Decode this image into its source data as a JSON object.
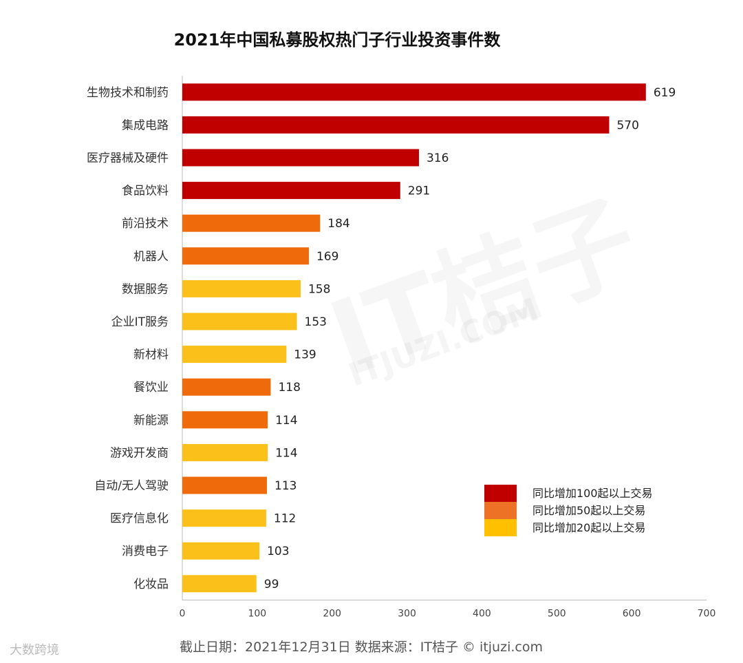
{
  "chart_data": {
    "type": "bar",
    "orientation": "horizontal",
    "title": "2021年中国私募股权热门子行业投资事件数",
    "categories": [
      "生物技术和制药",
      "集成电路",
      "医疗器械及硬件",
      "食品饮料",
      "前沿技术",
      "机器人",
      "数据服务",
      "企业IT服务",
      "新材料",
      "餐饮业",
      "新能源",
      "游戏开发商",
      "自动/无人驾驶",
      "医疗信息化",
      "消费电子",
      "化妆品"
    ],
    "values": [
      619,
      570,
      316,
      291,
      184,
      169,
      158,
      153,
      139,
      118,
      114,
      114,
      113,
      112,
      103,
      99
    ],
    "groups": [
      0,
      0,
      0,
      0,
      1,
      1,
      2,
      2,
      2,
      1,
      1,
      2,
      1,
      2,
      2,
      2
    ],
    "xlim": [
      0,
      700
    ],
    "xticks": [
      0,
      100,
      200,
      300,
      400,
      500,
      600,
      700
    ],
    "legend": [
      {
        "label": "同比增加100起以上交易",
        "color": "#c00000"
      },
      {
        "label": "同比增加50起以上交易",
        "color": "#ee7226"
      },
      {
        "label": "同比增加20起以上交易",
        "color": "#ffc000"
      }
    ],
    "legend_position": "bottom-right",
    "grid": false
  },
  "bar_colors": [
    "#c00000",
    "#ee6a0a",
    "#fbc11a"
  ],
  "watermark": {
    "text": "IT桔子",
    "url": "ITJUZI.COM"
  },
  "footer": "截止日期：2021年12月31日    数据来源：IT桔子 © itjuzi.com",
  "corner_badge": "大数跨境"
}
